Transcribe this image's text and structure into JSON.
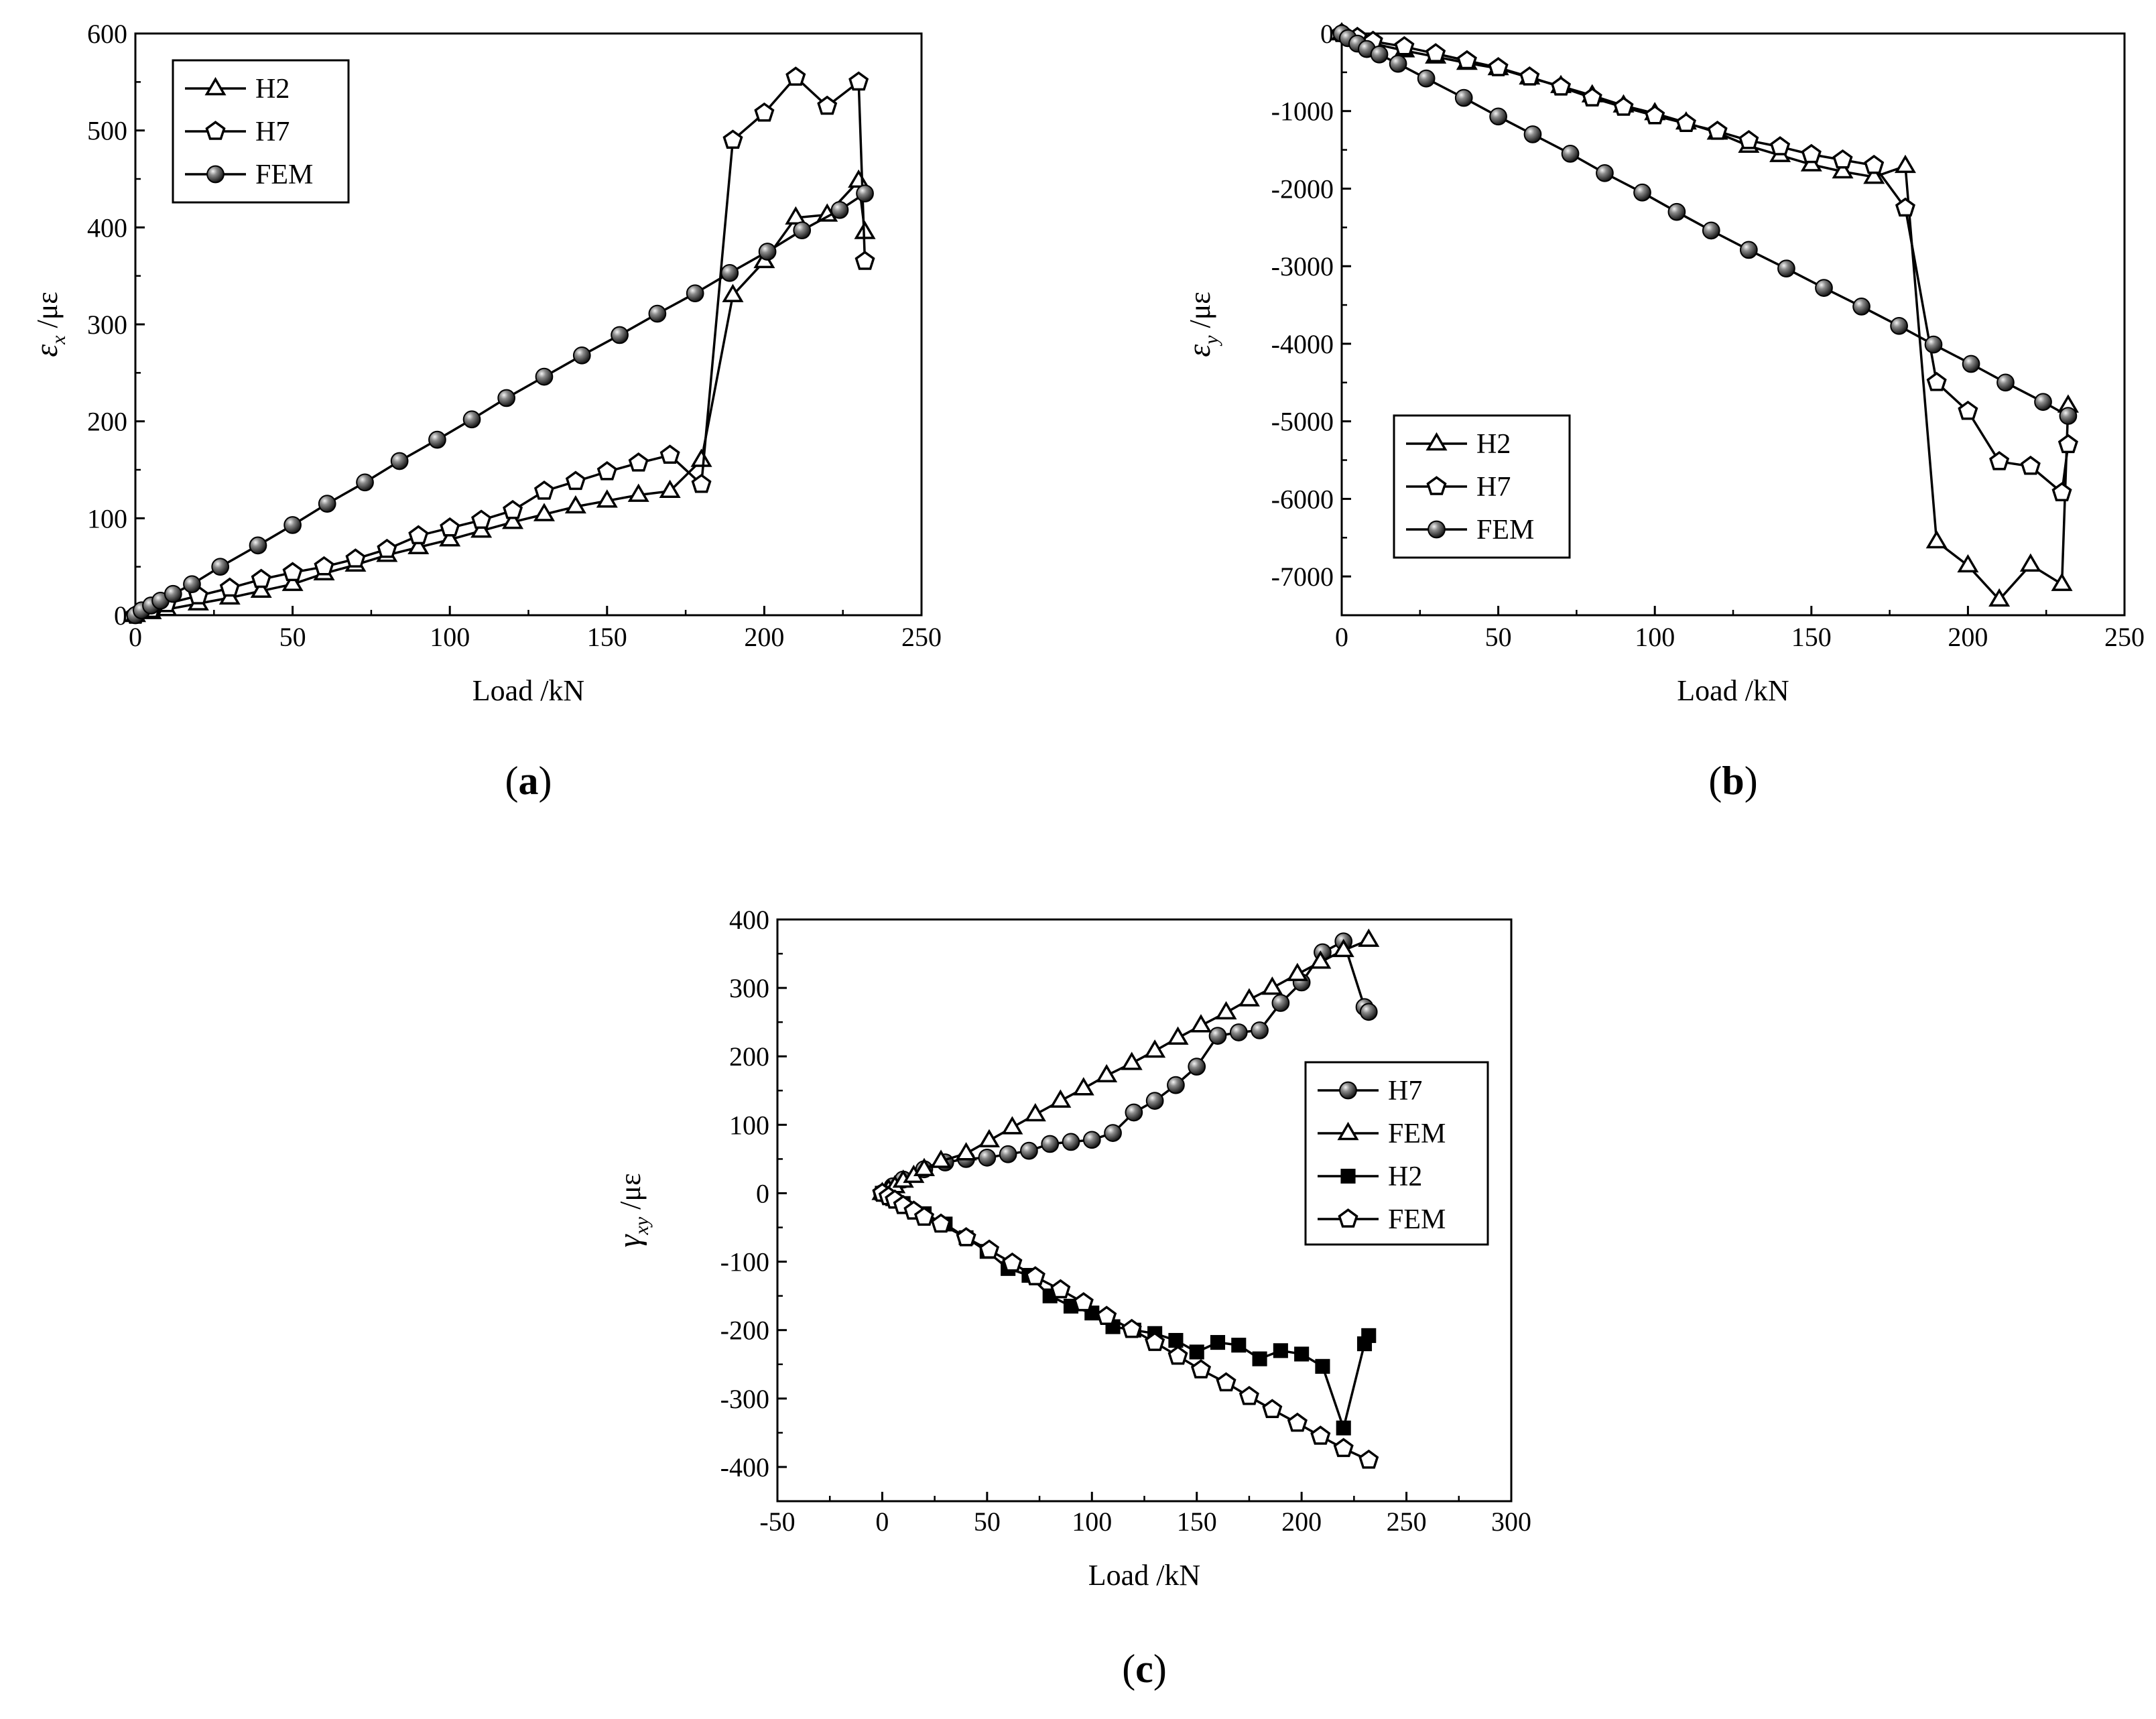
{
  "chart_data": [
    {
      "type": "line",
      "panel": "(a)",
      "panel_letter": "a",
      "xlabel": "Load /kN",
      "ylabel_symbol": "ε",
      "ylabel_sub": "x",
      "ylabel_unit": " /με",
      "xlim": [
        0,
        250
      ],
      "ylim": [
        0,
        600
      ],
      "xticks": [
        0,
        50,
        100,
        150,
        200,
        250
      ],
      "yticks": [
        0,
        100,
        200,
        300,
        400,
        500,
        600
      ],
      "legend_position": "top-left",
      "series": [
        {
          "name": "H2",
          "marker": "triangle",
          "x": [
            0,
            5,
            10,
            20,
            30,
            40,
            50,
            60,
            70,
            80,
            90,
            100,
            110,
            120,
            130,
            140,
            150,
            160,
            170,
            180,
            190,
            200,
            210,
            220,
            230,
            232
          ],
          "y": [
            0,
            3,
            6,
            12,
            18,
            25,
            32,
            43,
            52,
            62,
            70,
            78,
            87,
            96,
            104,
            112,
            118,
            124,
            128,
            160,
            330,
            365,
            410,
            413,
            448,
            395
          ]
        },
        {
          "name": "H7",
          "marker": "pentagon",
          "x": [
            0,
            5,
            10,
            20,
            30,
            40,
            50,
            60,
            70,
            80,
            90,
            100,
            110,
            120,
            130,
            140,
            150,
            160,
            170,
            180,
            190,
            200,
            210,
            220,
            230,
            232
          ],
          "y": [
            0,
            6,
            12,
            20,
            28,
            37,
            44,
            50,
            58,
            68,
            82,
            90,
            98,
            108,
            128,
            138,
            148,
            157,
            165,
            135,
            490,
            518,
            555,
            525,
            550,
            365
          ]
        },
        {
          "name": "FEM",
          "marker": "ball",
          "x": [
            0,
            2,
            5,
            8,
            12,
            18,
            27,
            39,
            50,
            61,
            73,
            84,
            96,
            107,
            118,
            130,
            142,
            154,
            166,
            178,
            189,
            201,
            212,
            224,
            232
          ],
          "y": [
            0,
            5,
            10,
            15,
            22,
            32,
            50,
            72,
            93,
            115,
            137,
            159,
            181,
            202,
            224,
            246,
            268,
            289,
            311,
            332,
            353,
            375,
            397,
            418,
            435
          ]
        }
      ]
    },
    {
      "type": "line",
      "panel": "(b)",
      "panel_letter": "b",
      "xlabel": "Load /kN",
      "ylabel_symbol": "ε",
      "ylabel_sub": "y",
      "ylabel_unit": " /με",
      "xlim": [
        0,
        250
      ],
      "ylim": [
        -7500,
        0
      ],
      "xticks": [
        0,
        50,
        100,
        150,
        200,
        250
      ],
      "yticks": [
        0,
        -1000,
        -2000,
        -3000,
        -4000,
        -5000,
        -6000,
        -7000
      ],
      "legend_position": "bottom-left",
      "series": [
        {
          "name": "H2",
          "marker": "triangle",
          "x": [
            0,
            5,
            10,
            20,
            30,
            40,
            50,
            60,
            70,
            80,
            90,
            100,
            110,
            120,
            130,
            140,
            150,
            160,
            170,
            180,
            190,
            200,
            210,
            220,
            230,
            232
          ],
          "y": [
            0,
            -60,
            -130,
            -220,
            -300,
            -380,
            -450,
            -570,
            -680,
            -800,
            -930,
            -1030,
            -1150,
            -1280,
            -1450,
            -1570,
            -1690,
            -1780,
            -1850,
            -1710,
            -6550,
            -6860,
            -7300,
            -6850,
            -7100,
            -4800
          ]
        },
        {
          "name": "H7",
          "marker": "pentagon",
          "x": [
            0,
            5,
            10,
            20,
            30,
            40,
            50,
            60,
            70,
            80,
            90,
            100,
            110,
            120,
            130,
            140,
            150,
            160,
            170,
            180,
            190,
            200,
            210,
            220,
            230,
            232
          ],
          "y": [
            0,
            -50,
            -100,
            -170,
            -260,
            -350,
            -440,
            -560,
            -690,
            -830,
            -950,
            -1060,
            -1160,
            -1260,
            -1380,
            -1460,
            -1560,
            -1630,
            -1700,
            -2250,
            -4500,
            -4870,
            -5520,
            -5580,
            -5920,
            -5300
          ]
        },
        {
          "name": "FEM",
          "marker": "ball",
          "x": [
            0,
            2,
            5,
            8,
            12,
            18,
            27,
            39,
            50,
            61,
            73,
            84,
            96,
            107,
            118,
            130,
            142,
            154,
            166,
            178,
            189,
            201,
            212,
            224,
            232
          ],
          "y": [
            0,
            -60,
            -130,
            -200,
            -270,
            -390,
            -580,
            -830,
            -1070,
            -1300,
            -1550,
            -1800,
            -2050,
            -2300,
            -2540,
            -2790,
            -3030,
            -3280,
            -3520,
            -3770,
            -4010,
            -4260,
            -4500,
            -4750,
            -4930
          ]
        }
      ]
    },
    {
      "type": "line",
      "panel": "(c)",
      "panel_letter": "c",
      "xlabel": "Load /kN",
      "ylabel_symbol": "γ",
      "ylabel_sub": "xy",
      "ylabel_unit": " /με",
      "xlim": [
        -50,
        300
      ],
      "ylim": [
        -450,
        400
      ],
      "xticks": [
        -50,
        0,
        50,
        100,
        150,
        200,
        250,
        300
      ],
      "yticks": [
        400,
        300,
        200,
        100,
        0,
        -100,
        -200,
        -300,
        -400
      ],
      "legend_position": "right",
      "series": [
        {
          "name": "H7",
          "marker": "ball",
          "x": [
            0,
            5,
            10,
            20,
            30,
            40,
            50,
            60,
            70,
            80,
            90,
            100,
            110,
            120,
            130,
            140,
            150,
            160,
            170,
            180,
            190,
            200,
            210,
            220,
            230,
            232
          ],
          "y": [
            0,
            10,
            20,
            35,
            45,
            50,
            52,
            57,
            62,
            72,
            75,
            78,
            88,
            118,
            135,
            158,
            185,
            230,
            235,
            238,
            278,
            308,
            352,
            368,
            272,
            265
          ]
        },
        {
          "name": "FEM",
          "marker": "triangle",
          "x": [
            0,
            3,
            6,
            10,
            15,
            20,
            28,
            40,
            51,
            62,
            73,
            85,
            96,
            107,
            119,
            130,
            141,
            152,
            164,
            175,
            186,
            198,
            209,
            220,
            232
          ],
          "y": [
            0,
            5,
            10,
            18,
            25,
            35,
            47,
            58,
            77,
            96,
            115,
            135,
            153,
            172,
            190,
            208,
            227,
            245,
            264,
            283,
            300,
            320,
            338,
            355,
            370
          ]
        },
        {
          "name": "H2",
          "marker": "square",
          "x": [
            0,
            5,
            10,
            20,
            30,
            40,
            50,
            60,
            70,
            80,
            90,
            100,
            110,
            120,
            130,
            140,
            150,
            160,
            170,
            180,
            190,
            200,
            210,
            220,
            230,
            232
          ],
          "y": [
            0,
            -8,
            -15,
            -30,
            -45,
            -65,
            -85,
            -110,
            -120,
            -150,
            -165,
            -175,
            -195,
            -200,
            -205,
            -215,
            -232,
            -218,
            -222,
            -242,
            -230,
            -235,
            -253,
            -343,
            -220,
            -208
          ]
        },
        {
          "name": "FEM",
          "marker": "pentagon",
          "x": [
            0,
            3,
            6,
            10,
            15,
            20,
            28,
            40,
            51,
            62,
            73,
            85,
            96,
            107,
            119,
            130,
            141,
            152,
            164,
            175,
            186,
            198,
            209,
            220,
            232
          ],
          "y": [
            0,
            -5,
            -10,
            -18,
            -26,
            -35,
            -45,
            -65,
            -83,
            -102,
            -122,
            -141,
            -160,
            -180,
            -199,
            -218,
            -238,
            -258,
            -277,
            -297,
            -316,
            -336,
            -355,
            -373,
            -390
          ]
        }
      ]
    }
  ]
}
